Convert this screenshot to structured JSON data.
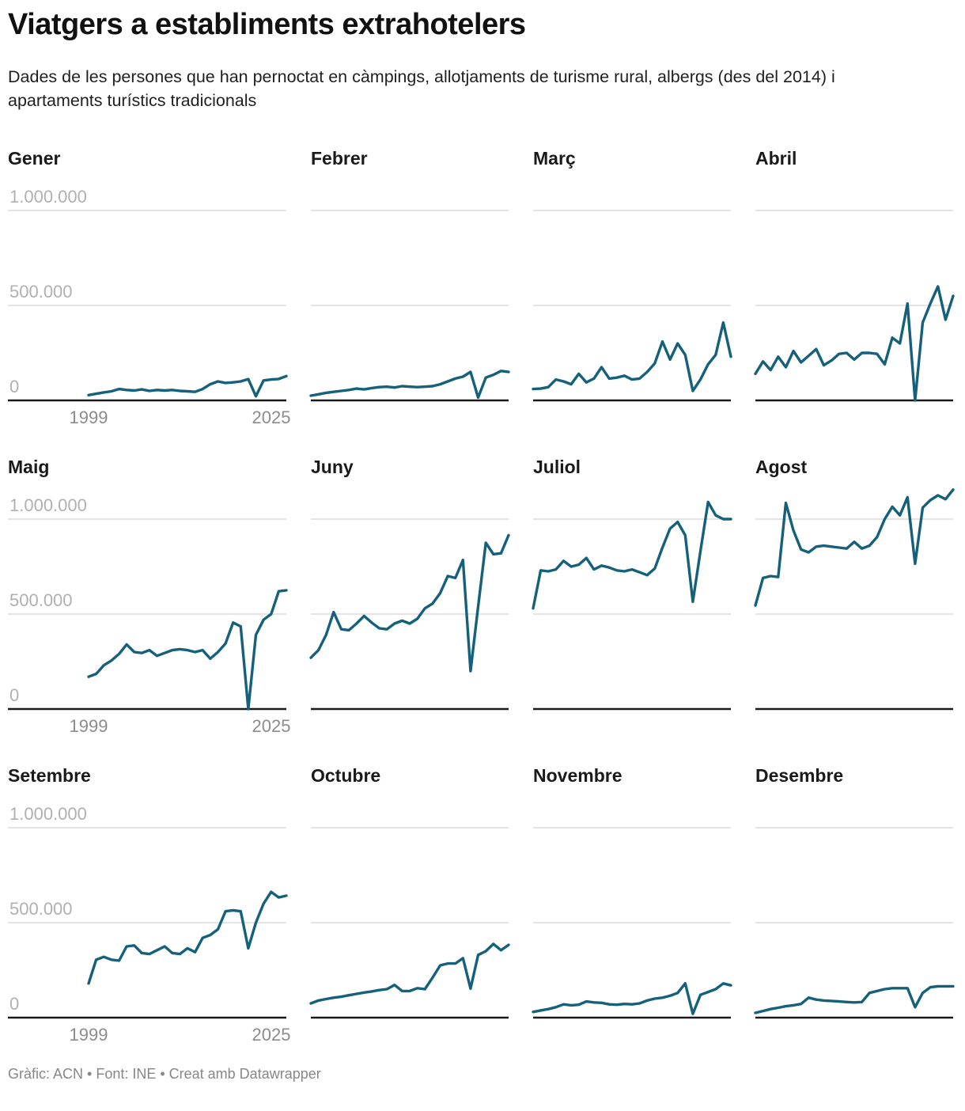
{
  "header": {
    "title": "Viatgers a establiments extrahotelers",
    "subtitle": "Dades de les persones que han pernoctat en càmpings, allotjaments de turisme rural, albergs (des del 2014) i apartaments turístics tradicionals"
  },
  "axis": {
    "y_ticks": [
      "1.000.000",
      "500.000",
      "0"
    ],
    "y_tick_values": [
      1000000,
      500000,
      0
    ],
    "x_first_label": "1999",
    "x_last_label": "2025",
    "ylim": [
      0,
      1187500
    ],
    "grid": "horizontal-only",
    "x_labels_only_on_first_column": true
  },
  "colors": {
    "line": "#15607a",
    "grid": "#dcdcdc",
    "axis": "#1a1a1a",
    "y_tick_label": "#b0b0b0",
    "x_tick_label": "#8c8c8c"
  },
  "chart_data": [
    {
      "title": "Gener",
      "type": "line",
      "x_start": 1999,
      "x_end": 2025,
      "values": [
        28000,
        35000,
        42000,
        48000,
        60000,
        55000,
        52000,
        58000,
        50000,
        55000,
        52000,
        55000,
        50000,
        48000,
        45000,
        60000,
        85000,
        100000,
        92000,
        95000,
        100000,
        112000,
        22000,
        105000,
        110000,
        113000,
        128000
      ]
    },
    {
      "title": "Febrer",
      "type": "line",
      "x_start": 1999,
      "x_end": 2025,
      "values": [
        25000,
        32000,
        40000,
        45000,
        50000,
        55000,
        62000,
        58000,
        65000,
        70000,
        72000,
        68000,
        75000,
        72000,
        70000,
        72000,
        75000,
        85000,
        100000,
        115000,
        125000,
        150000,
        15000,
        120000,
        135000,
        155000,
        150000
      ]
    },
    {
      "title": "Març",
      "type": "line",
      "x_start": 1999,
      "x_end": 2025,
      "values": [
        60000,
        62000,
        70000,
        110000,
        100000,
        85000,
        140000,
        95000,
        115000,
        175000,
        115000,
        120000,
        130000,
        110000,
        115000,
        150000,
        195000,
        310000,
        215000,
        300000,
        240000,
        50000,
        110000,
        190000,
        240000,
        410000,
        230000
      ]
    },
    {
      "title": "Abril",
      "type": "line",
      "x_start": 1999,
      "x_end": 2025,
      "values": [
        140000,
        205000,
        160000,
        230000,
        175000,
        260000,
        200000,
        235000,
        270000,
        185000,
        210000,
        245000,
        250000,
        215000,
        250000,
        250000,
        245000,
        190000,
        330000,
        300000,
        510000,
        0,
        410000,
        510000,
        600000,
        425000,
        550000
      ]
    },
    {
      "title": "Maig",
      "type": "line",
      "x_start": 1999,
      "x_end": 2025,
      "values": [
        170000,
        185000,
        230000,
        255000,
        290000,
        340000,
        300000,
        295000,
        310000,
        280000,
        295000,
        310000,
        315000,
        310000,
        300000,
        310000,
        265000,
        300000,
        345000,
        455000,
        435000,
        0,
        390000,
        470000,
        500000,
        620000,
        625000
      ]
    },
    {
      "title": "Juny",
      "type": "line",
      "x_start": 1999,
      "x_end": 2025,
      "values": [
        270000,
        310000,
        390000,
        510000,
        420000,
        415000,
        450000,
        490000,
        455000,
        425000,
        420000,
        450000,
        465000,
        450000,
        475000,
        530000,
        555000,
        610000,
        700000,
        690000,
        785000,
        200000,
        540000,
        875000,
        815000,
        820000,
        915000
      ]
    },
    {
      "title": "Juliol",
      "type": "line",
      "x_start": 1999,
      "x_end": 2025,
      "values": [
        530000,
        730000,
        725000,
        735000,
        780000,
        750000,
        760000,
        795000,
        735000,
        755000,
        745000,
        730000,
        725000,
        735000,
        720000,
        705000,
        740000,
        850000,
        950000,
        985000,
        915000,
        565000,
        830000,
        1090000,
        1020000,
        1000000,
        1000000
      ]
    },
    {
      "title": "Agost",
      "type": "line",
      "x_start": 1999,
      "x_end": 2025,
      "values": [
        545000,
        690000,
        700000,
        695000,
        1085000,
        940000,
        840000,
        825000,
        855000,
        860000,
        855000,
        850000,
        845000,
        880000,
        845000,
        860000,
        905000,
        1000000,
        1065000,
        1020000,
        1115000,
        765000,
        1060000,
        1100000,
        1125000,
        1105000,
        1155000
      ]
    },
    {
      "title": "Setembre",
      "type": "line",
      "x_start": 1999,
      "x_end": 2025,
      "values": [
        180000,
        305000,
        320000,
        305000,
        300000,
        375000,
        380000,
        340000,
        335000,
        355000,
        375000,
        340000,
        335000,
        365000,
        345000,
        420000,
        435000,
        465000,
        560000,
        565000,
        560000,
        365000,
        500000,
        600000,
        662000,
        633000,
        642000
      ]
    },
    {
      "title": "Octubre",
      "type": "line",
      "x_start": 1999,
      "x_end": 2025,
      "values": [
        75000,
        90000,
        98000,
        105000,
        110000,
        118000,
        125000,
        132000,
        138000,
        145000,
        150000,
        172000,
        140000,
        140000,
        155000,
        150000,
        210000,
        275000,
        285000,
        285000,
        313000,
        153000,
        330000,
        350000,
        388000,
        355000,
        383000
      ]
    },
    {
      "title": "Novembre",
      "type": "line",
      "x_start": 1999,
      "x_end": 2025,
      "values": [
        30000,
        38000,
        45000,
        55000,
        70000,
        65000,
        68000,
        85000,
        80000,
        78000,
        70000,
        68000,
        72000,
        70000,
        75000,
        90000,
        100000,
        105000,
        115000,
        130000,
        180000,
        20000,
        120000,
        135000,
        150000,
        180000,
        170000
      ]
    },
    {
      "title": "Desembre",
      "type": "line",
      "x_start": 1999,
      "x_end": 2025,
      "values": [
        25000,
        35000,
        45000,
        52000,
        60000,
        65000,
        72000,
        105000,
        95000,
        90000,
        88000,
        85000,
        82000,
        80000,
        82000,
        130000,
        140000,
        150000,
        155000,
        155000,
        155000,
        55000,
        130000,
        160000,
        165000,
        165000,
        165000
      ]
    }
  ],
  "footer": {
    "credit": "Gràfic: ACN • Font: INE • Creat amb Datawrapper"
  }
}
